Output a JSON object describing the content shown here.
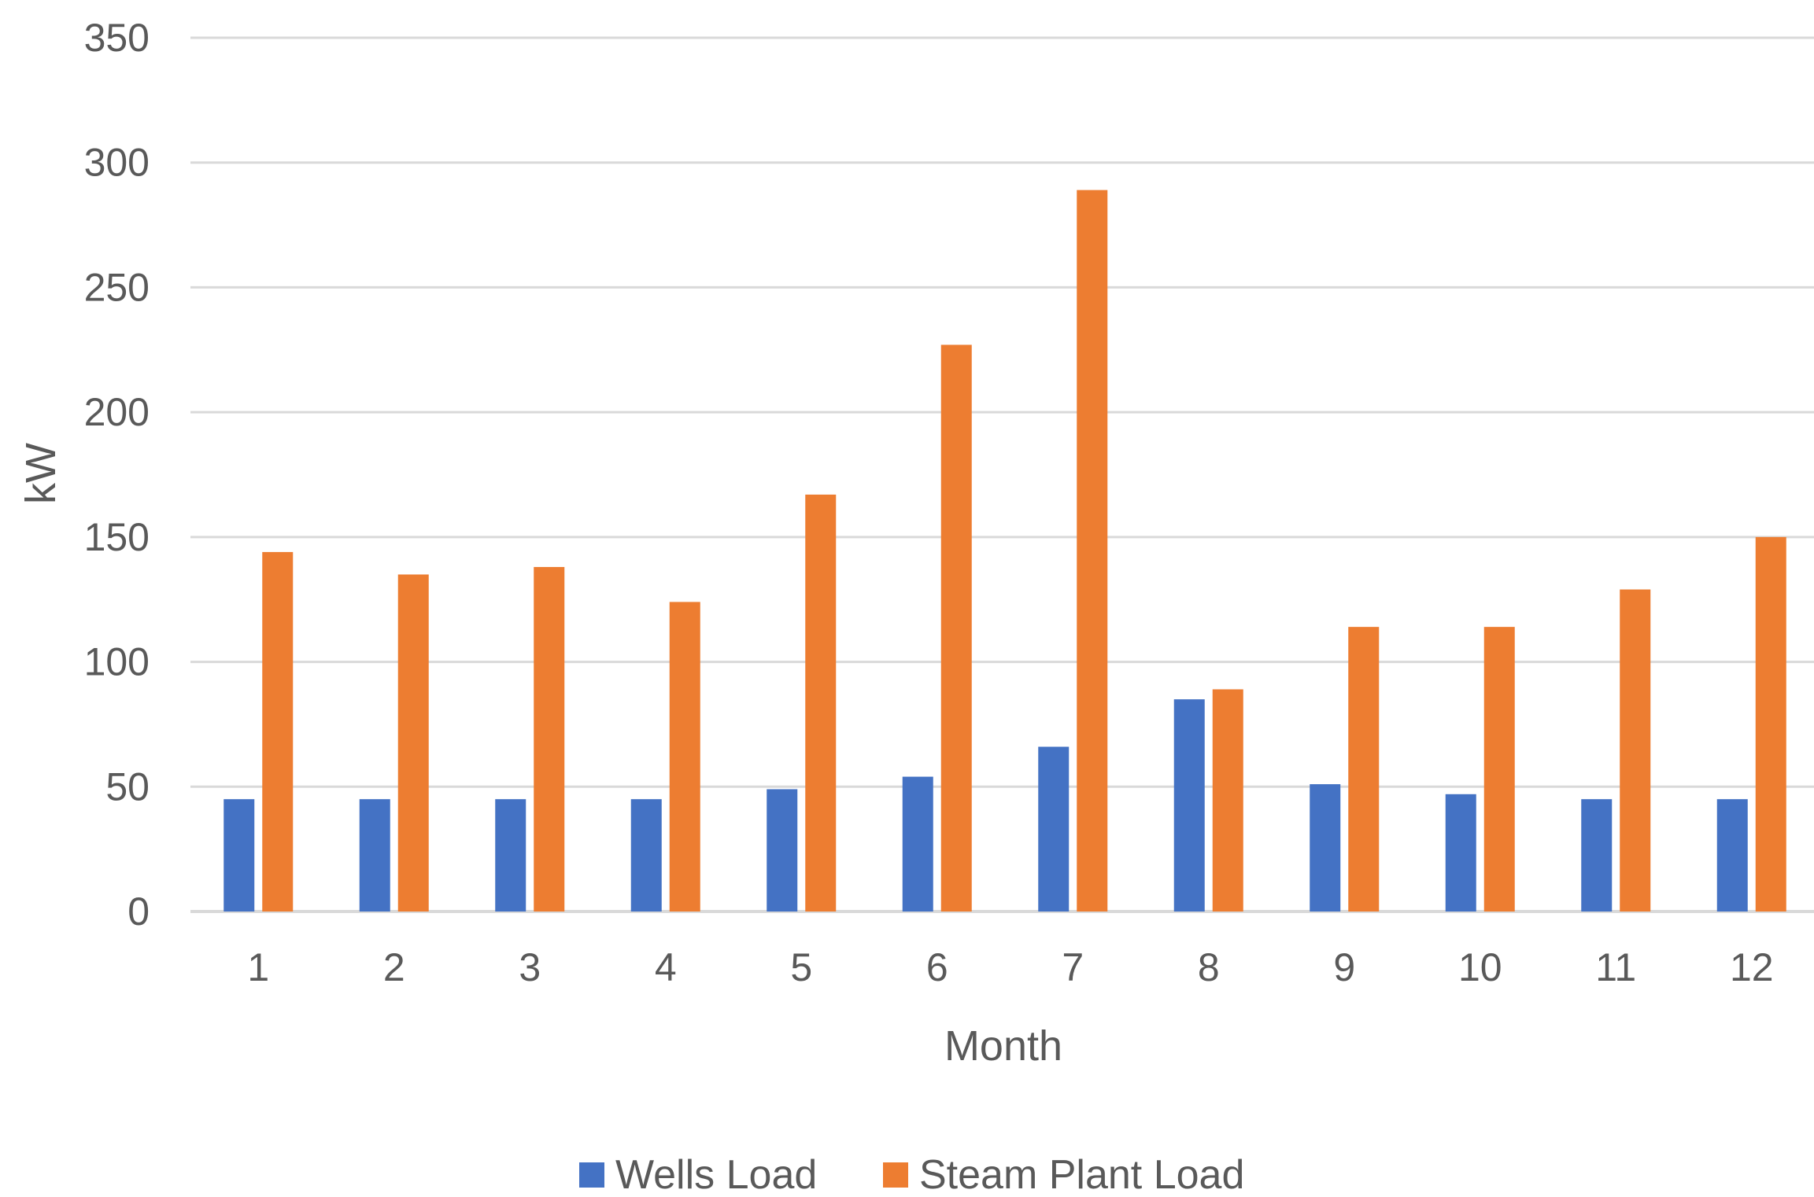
{
  "chart_data": {
    "type": "bar",
    "title": "",
    "xlabel": "Month",
    "ylabel": "kW",
    "ylim": [
      0,
      350
    ],
    "yticks": [
      0,
      50,
      100,
      150,
      200,
      250,
      300,
      350
    ],
    "grid": true,
    "legend_position": "bottom",
    "categories": [
      "1",
      "2",
      "3",
      "4",
      "5",
      "6",
      "7",
      "8",
      "9",
      "10",
      "11",
      "12"
    ],
    "series": [
      {
        "name": "Wells Load",
        "color": "#4472c4",
        "values": [
          45,
          45,
          45,
          45,
          49,
          54,
          66,
          85,
          51,
          47,
          45,
          45
        ]
      },
      {
        "name": "Steam Plant Load",
        "color": "#ed7d31",
        "values": [
          144,
          135,
          138,
          124,
          167,
          227,
          289,
          89,
          114,
          114,
          129,
          150
        ]
      }
    ]
  }
}
